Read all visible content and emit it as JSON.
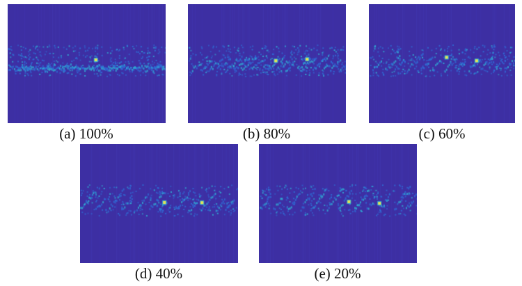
{
  "figure": {
    "panels": [
      {
        "id": "a",
        "caption": "(a) 100%",
        "fraction": 1.0
      },
      {
        "id": "b",
        "caption": "(b) 80%",
        "fraction": 0.8
      },
      {
        "id": "c",
        "caption": "(c) 60%",
        "fraction": 0.6
      },
      {
        "id": "d",
        "caption": "(d) 40%",
        "fraction": 0.4
      },
      {
        "id": "e",
        "caption": "(e) 20%",
        "fraction": 0.2
      }
    ],
    "colors": {
      "background": "#3d2fa3",
      "low": "#2f6fd8",
      "mid": "#2fb8d8",
      "high": "#f2e64a"
    }
  }
}
